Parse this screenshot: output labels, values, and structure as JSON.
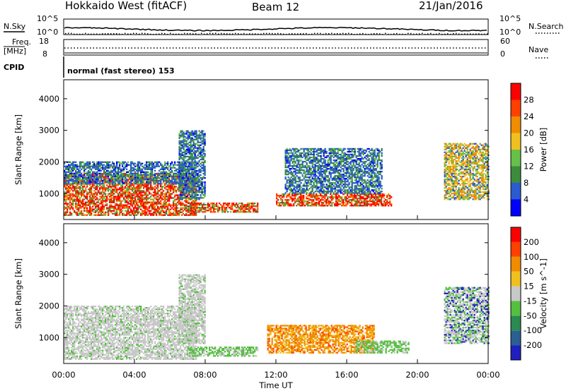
{
  "header": {
    "title": "Hokkaido West (fitACF)",
    "beam": "Beam 12",
    "date": "21/Jan/2016"
  },
  "top_panel": {
    "nsky_label": "N.Sky",
    "nsearch_label": "N.Search",
    "freq_label": "Freq.",
    "freq_unit": "[MHz]",
    "nave_label": "Nave",
    "cpid_label": "CPID",
    "cpid_text": "normal (fast stereo) 153",
    "noise_ticks": [
      "10^5",
      "10^0"
    ],
    "freq_ticks": [
      "18",
      "8"
    ],
    "nave_ticks": [
      "60",
      "0"
    ]
  },
  "chart_data": [
    {
      "type": "heatmap",
      "name": "power",
      "xlabel": "",
      "ylabel": "Slant Range [km]",
      "xlim": [
        0,
        24
      ],
      "ylim": [
        180,
        4600
      ],
      "y_ticks": [
        1000,
        2000,
        3000,
        4000
      ],
      "colorbar_label": "Power [dB]",
      "colorbar_ticks": [
        "4",
        "8",
        "12",
        "16",
        "20",
        "24",
        "28"
      ],
      "colorbar_colors": [
        "#0000ff",
        "#2a5bd0",
        "#3c8c3c",
        "#66c04a",
        "#f0c020",
        "#f08c00",
        "#ff4000",
        "#ff0000"
      ],
      "regions": [
        {
          "t0": 0.0,
          "t1": 7.5,
          "r0": 300,
          "r1": 1650,
          "level": "high"
        },
        {
          "t0": 0.0,
          "t1": 7.5,
          "r0": 1300,
          "r1": 2000,
          "level": "low"
        },
        {
          "t0": 6.5,
          "t1": 8.0,
          "r0": 800,
          "r1": 3000,
          "level": "low"
        },
        {
          "t0": 7.0,
          "t1": 11.0,
          "r0": 400,
          "r1": 700,
          "level": "high"
        },
        {
          "t0": 12.0,
          "t1": 18.5,
          "r0": 600,
          "r1": 1000,
          "level": "high"
        },
        {
          "t0": 12.5,
          "t1": 18.0,
          "r0": 1000,
          "r1": 2400,
          "level": "low"
        },
        {
          "t0": 21.5,
          "t1": 24.0,
          "r0": 800,
          "r1": 2600,
          "level": "mid"
        }
      ]
    },
    {
      "type": "heatmap",
      "name": "velocity",
      "xlabel": "Time UT",
      "ylabel": "Slant Range [km]",
      "xlim": [
        0,
        24
      ],
      "ylim": [
        180,
        4600
      ],
      "y_ticks": [
        1000,
        2000,
        3000,
        4000
      ],
      "x_ticks": [
        "00:00",
        "04:00",
        "08:00",
        "12:00",
        "16:00",
        "20:00",
        "00:00"
      ],
      "colorbar_label": "Velocity [m s^-1]",
      "colorbar_ticks": [
        "200",
        "100",
        "50",
        "15",
        "-15",
        "-50",
        "-100",
        "-200"
      ],
      "colorbar_colors": [
        "#2020c0",
        "#2a6090",
        "#2a8a50",
        "#55c040",
        "#c8c8c8",
        "#f0c020",
        "#f08c00",
        "#ff4000",
        "#ff0000"
      ],
      "regions": [
        {
          "t0": 0.0,
          "t1": 7.5,
          "r0": 300,
          "r1": 2000,
          "level": "gray"
        },
        {
          "t0": 6.5,
          "t1": 8.0,
          "r0": 800,
          "r1": 3000,
          "level": "gray"
        },
        {
          "t0": 7.0,
          "t1": 11.0,
          "r0": 400,
          "r1": 700,
          "level": "green"
        },
        {
          "t0": 11.5,
          "t1": 17.5,
          "r0": 500,
          "r1": 1400,
          "level": "orange"
        },
        {
          "t0": 16.5,
          "t1": 19.5,
          "r0": 500,
          "r1": 900,
          "level": "green"
        },
        {
          "t0": 21.5,
          "t1": 24.0,
          "r0": 800,
          "r1": 2600,
          "level": "mixed"
        }
      ]
    }
  ]
}
